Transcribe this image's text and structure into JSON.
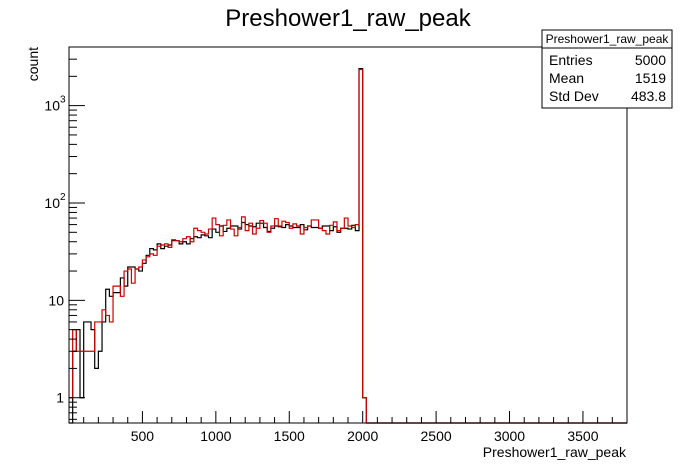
{
  "chart_data": {
    "type": "histogram",
    "title": "Preshower1_raw_peak",
    "xlabel": "Preshower1_raw_peak",
    "ylabel": "count",
    "xlim": [
      0,
      3800
    ],
    "ylim": [
      0.55,
      4000
    ],
    "y_scale": "log",
    "bin_width": 25,
    "bin_start": 0,
    "x_ticks": [
      500,
      1000,
      1500,
      2000,
      2500,
      3000,
      3500
    ],
    "y_ticks": [
      {
        "value": 1,
        "label": "1"
      },
      {
        "value": 10,
        "label": "10"
      },
      {
        "value": 100,
        "label": "10",
        "exp": "2"
      },
      {
        "value": 1000,
        "label": "10",
        "exp": "3"
      }
    ],
    "series": [
      {
        "color": "#000000",
        "values": [
          0,
          3,
          5,
          1,
          6,
          6,
          5,
          2,
          3,
          6,
          13,
          11,
          12,
          12,
          17,
          14,
          22,
          22,
          21,
          20,
          24,
          29,
          34,
          33,
          38,
          34,
          36,
          37,
          41,
          41,
          38,
          40,
          38,
          43,
          45,
          44,
          47,
          46,
          44,
          54,
          50,
          58,
          51,
          55,
          58,
          58,
          54,
          63,
          60,
          58,
          57,
          62,
          62,
          56,
          51,
          55,
          58,
          57,
          56,
          60,
          58,
          56,
          56,
          60,
          53,
          58,
          56,
          56,
          55,
          58,
          58,
          52,
          57,
          50,
          55,
          55,
          54,
          59,
          52,
          2400,
          1
        ],
        "tail_value": 0.5
      },
      {
        "color": "#cc0000",
        "values": [
          1,
          5,
          3,
          3,
          3,
          3,
          3,
          6,
          6,
          8,
          7,
          6,
          14,
          14,
          11,
          20,
          21,
          15,
          21,
          22,
          26,
          28,
          30,
          29,
          36,
          37,
          38,
          35,
          42,
          41,
          40,
          43,
          45,
          40,
          55,
          52,
          50,
          48,
          54,
          70,
          60,
          46,
          59,
          67,
          54,
          46,
          56,
          72,
          52,
          62,
          48,
          55,
          66,
          62,
          50,
          58,
          69,
          58,
          65,
          63,
          55,
          61,
          58,
          48,
          56,
          58,
          67,
          67,
          55,
          52,
          48,
          59,
          64,
          52,
          55,
          70,
          58,
          56,
          60,
          2350,
          1
        ],
        "tail_value": 0.5
      }
    ],
    "stats_box": {
      "title": "Preshower1_raw_peak",
      "rows": [
        {
          "label": "Entries",
          "value": "5000"
        },
        {
          "label": "Mean",
          "value": "1519"
        },
        {
          "label": "Std Dev",
          "value": "483.8"
        }
      ]
    }
  }
}
